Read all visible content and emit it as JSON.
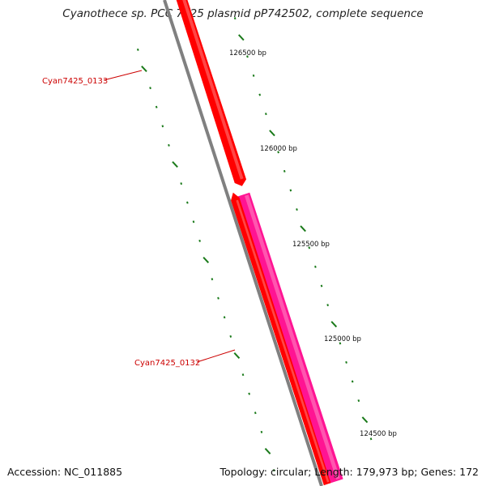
{
  "title": "Cyanothece sp. PCC 7425 plasmid pP742502, complete sequence",
  "footer": {
    "accession": "Accession: NC_011885",
    "summary": "Topology: circular; Length: 179,973 bp; Genes: 172"
  },
  "backbone": {
    "color": "#808080"
  },
  "ticks": [
    {
      "label": "126500 bp"
    },
    {
      "label": "126000 bp"
    },
    {
      "label": "125500 bp"
    },
    {
      "label": "125000 bp"
    },
    {
      "label": "124500 bp"
    }
  ],
  "genes": [
    {
      "label": "Cyan7425_0133",
      "strand": "forward",
      "color": "#ff0000",
      "shade": "#ff8080"
    },
    {
      "label": "Cyan7425_0132",
      "strand": "forward",
      "color": "#ff1493",
      "shade": "#ff8cc6"
    },
    {
      "label": "",
      "strand": "reverse",
      "color": "#ff0000",
      "shade": "#ff8080"
    }
  ],
  "colors": {
    "tick": "#1a7a1a",
    "label_line": "#cc0000"
  }
}
